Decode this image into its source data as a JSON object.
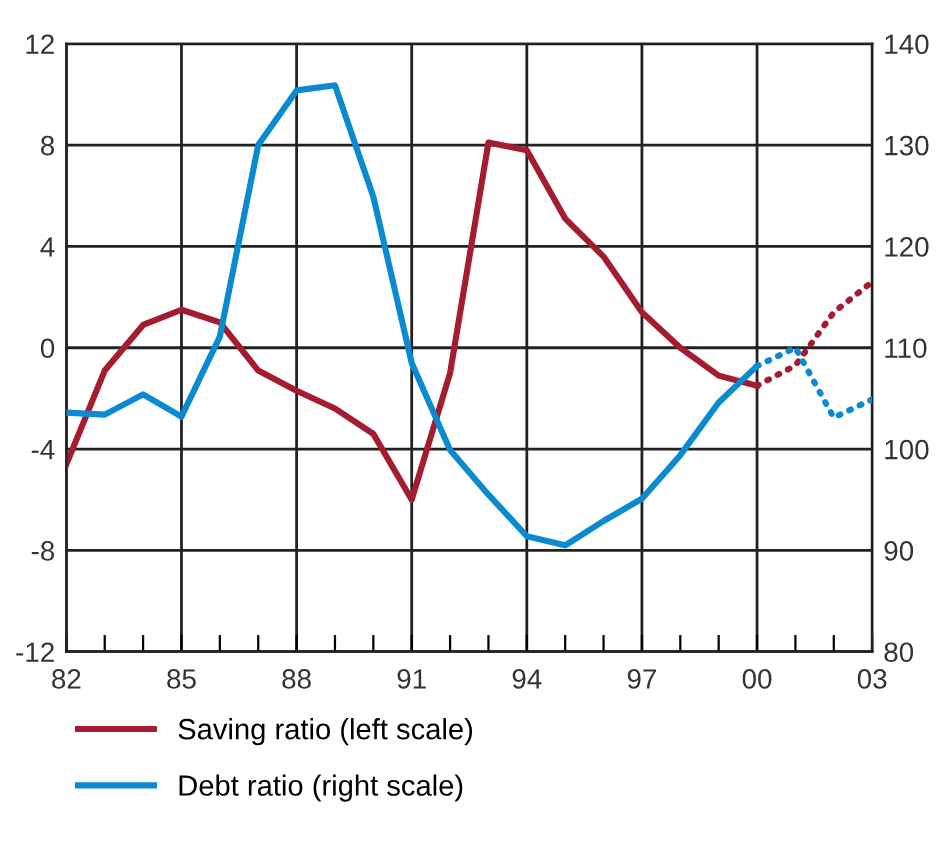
{
  "chart_data": {
    "type": "line",
    "categories": [
      "82",
      null,
      null,
      "85",
      null,
      null,
      "88",
      null,
      null,
      "91",
      null,
      null,
      "94",
      null,
      null,
      "97",
      null,
      null,
      "00",
      null,
      null,
      "03"
    ],
    "series": [
      {
        "name": "Saving ratio (left scale)",
        "color": "#a51c30",
        "values": [
          -4.6,
          -0.9,
          0.9,
          1.5,
          1.0,
          -0.9,
          -1.7,
          -2.4,
          -3.4,
          -6.0,
          -1.0,
          8.1,
          7.8,
          5.1,
          3.6,
          1.4,
          0.0,
          -1.1,
          -1.5,
          null,
          null,
          null
        ]
      },
      {
        "name": "Debt ratio (right scale)",
        "color": "#0a8ad0",
        "axis": "y2",
        "values": [
          103.6,
          103.4,
          105.4,
          103.2,
          111.1,
          130.0,
          135.4,
          135.9,
          124.9,
          108.5,
          99.9,
          95.5,
          91.4,
          90.5,
          92.9,
          95.1,
          99.4,
          104.6,
          108.2,
          null,
          null,
          null
        ]
      },
      {
        "color": "#a51c30",
        "line_style": "dotted",
        "values": [
          null,
          null,
          null,
          null,
          null,
          null,
          null,
          null,
          null,
          null,
          null,
          null,
          null,
          null,
          null,
          null,
          null,
          null,
          -1.5,
          -0.7,
          1.4,
          2.6
        ]
      },
      {
        "color": "#0a8ad0",
        "line_style": "dotted",
        "axis": "y2",
        "values": [
          null,
          null,
          null,
          null,
          null,
          null,
          null,
          null,
          null,
          null,
          null,
          null,
          null,
          null,
          null,
          null,
          null,
          null,
          108.2,
          110.0,
          103.1,
          104.9
        ]
      }
    ],
    "ylim": [
      -12,
      12
    ],
    "yticks": [
      -12,
      -8,
      -4,
      0,
      4,
      8,
      12
    ],
    "y2lim": [
      80,
      140
    ],
    "y2ticks": [
      80,
      90,
      100,
      110,
      120,
      130,
      140
    ],
    "grid": true,
    "legend": "bottom",
    "line_style": "solid"
  }
}
